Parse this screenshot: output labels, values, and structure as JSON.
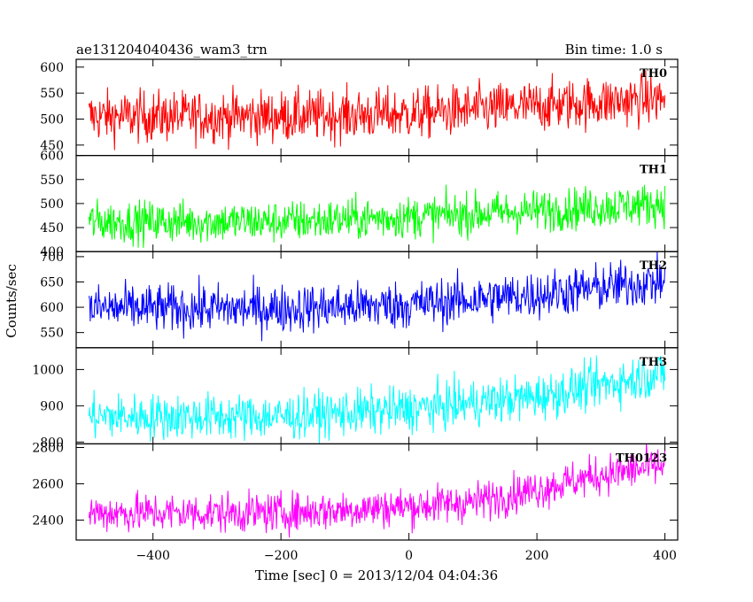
{
  "chart_data": {
    "type": "line",
    "title": "ae131204040436_wam3_trn",
    "subtitle": "Bin time: 1.0 s",
    "xlabel": "Time [sec] 0 = 2013/12/04 04:04:36",
    "ylabel": "Counts/sec",
    "xlim": [
      -520,
      420
    ],
    "x_ticks": [
      "−400",
      "−200",
      "0",
      "200",
      "400"
    ],
    "x_tick_values": [
      -400,
      -200,
      0,
      200,
      400
    ],
    "x_start": -500,
    "x_end": 400,
    "bin_time": 1.0,
    "panels": [
      {
        "name": "TH0",
        "color": "#ff0000",
        "ylim": [
          430,
          615
        ],
        "y_ticks": [
          "450",
          "500",
          "550",
          "600"
        ],
        "y_tick_values": [
          450,
          500,
          550,
          600
        ],
        "trend": [
          [
            -500,
            505
          ],
          [
            -200,
            505
          ],
          [
            0,
            510
          ],
          [
            200,
            525
          ],
          [
            400,
            540
          ]
        ],
        "noise": 25
      },
      {
        "name": "TH1",
        "color": "#00ff00",
        "ylim": [
          400,
          600
        ],
        "y_ticks": [
          "400",
          "450",
          "500",
          "550",
          "600"
        ],
        "y_tick_values": [
          400,
          450,
          500,
          550,
          600
        ],
        "trend": [
          [
            -500,
            462
          ],
          [
            -200,
            462
          ],
          [
            0,
            472
          ],
          [
            200,
            485
          ],
          [
            400,
            500
          ]
        ],
        "noise": 22
      },
      {
        "name": "TH2",
        "color": "#0000ff",
        "ylim": [
          520,
          710
        ],
        "y_ticks": [
          "550",
          "600",
          "650",
          "700"
        ],
        "y_tick_values": [
          550,
          600,
          650,
          700
        ],
        "trend": [
          [
            -500,
            598
          ],
          [
            -200,
            597
          ],
          [
            0,
            605
          ],
          [
            200,
            625
          ],
          [
            400,
            652
          ]
        ],
        "noise": 24
      },
      {
        "name": "TH3",
        "color": "#00ffff",
        "ylim": [
          795,
          1060
        ],
        "y_ticks": [
          "800",
          "900",
          "1000"
        ],
        "y_tick_values": [
          800,
          900,
          1000
        ],
        "trend": [
          [
            -500,
            870
          ],
          [
            -200,
            870
          ],
          [
            0,
            890
          ],
          [
            200,
            925
          ],
          [
            400,
            990
          ]
        ],
        "noise": 32
      },
      {
        "name": "TH0123",
        "color": "#ff00ff",
        "ylim": [
          2290,
          2820
        ],
        "y_ticks": [
          "2400",
          "2600",
          "2800"
        ],
        "y_tick_values": [
          2400,
          2600,
          2800
        ],
        "trend": [
          [
            -500,
            2440
          ],
          [
            -200,
            2440
          ],
          [
            0,
            2475
          ],
          [
            100,
            2500
          ],
          [
            200,
            2570
          ],
          [
            300,
            2650
          ],
          [
            400,
            2700
          ]
        ],
        "noise": 55
      }
    ]
  }
}
